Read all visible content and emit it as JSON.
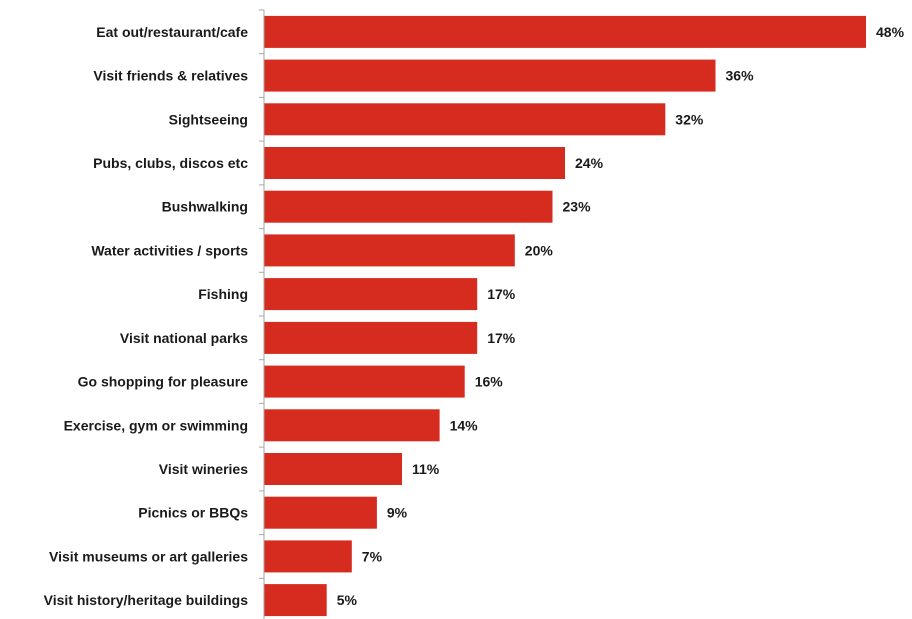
{
  "chart_data": {
    "type": "bar",
    "orientation": "horizontal",
    "title": "",
    "xlabel": "",
    "ylabel": "",
    "categories": [
      "Eat out/restaurant/cafe",
      "Visit friends & relatives",
      "Sightseeing",
      "Pubs, clubs, discos etc",
      "Bushwalking",
      "Water activities / sports",
      "Fishing",
      "Visit national parks",
      "Go shopping for pleasure",
      "Exercise, gym or swimming",
      "Visit wineries",
      "Picnics or BBQs",
      "Visit museums or art galleries",
      "Visit history/heritage buildings"
    ],
    "values": [
      48,
      36,
      32,
      24,
      23,
      20,
      17,
      17,
      16,
      14,
      11,
      9,
      7,
      5
    ],
    "value_labels": [
      "48%",
      "36%",
      "32%",
      "24%",
      "23%",
      "20%",
      "17%",
      "17%",
      "16%",
      "14%",
      "11%",
      "9%",
      "7%",
      "5%"
    ],
    "value_unit": "%",
    "xlim": [
      0,
      50
    ],
    "grid": false,
    "legend": "none",
    "bar_color": "#d62b1f"
  }
}
